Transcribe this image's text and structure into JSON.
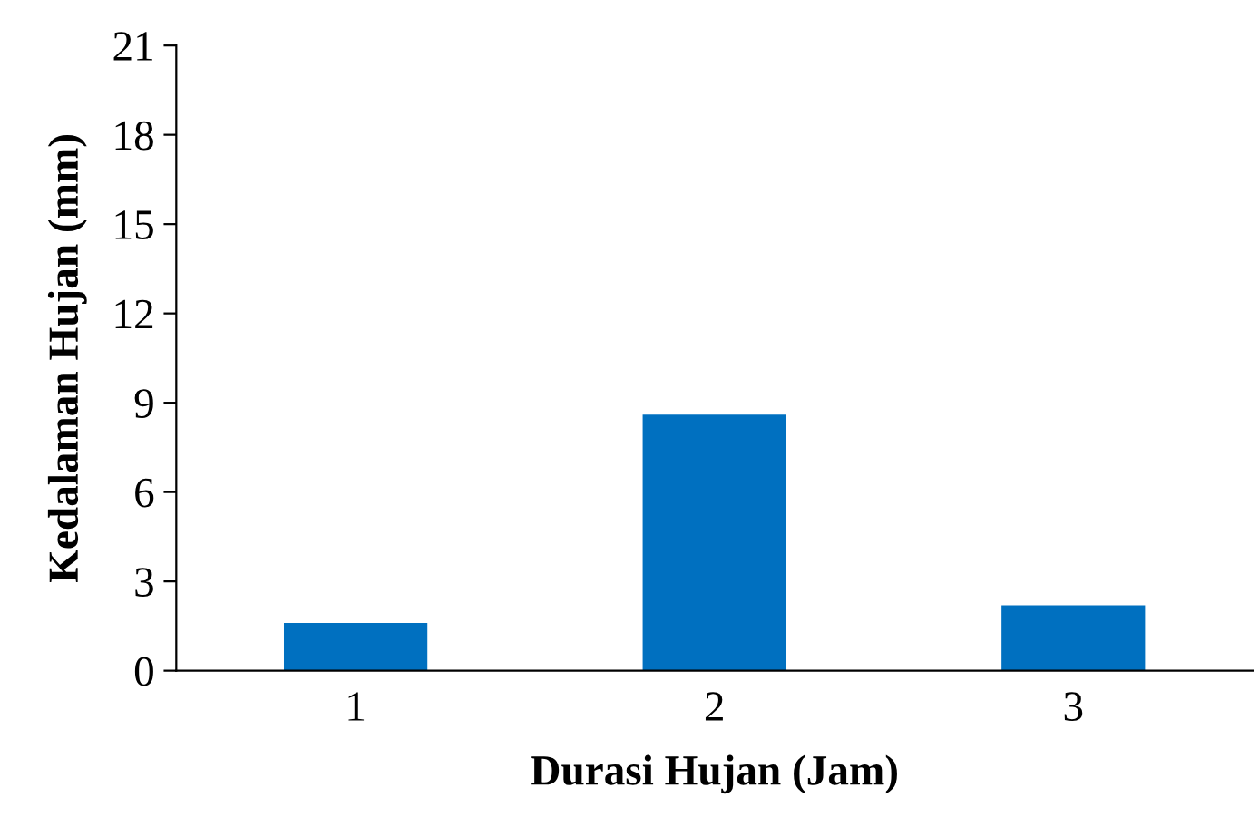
{
  "chart_data": {
    "type": "bar",
    "xlabel": "Durasi Hujan (Jam)",
    "ylabel": "Kedalaman Hujan (mm)",
    "categories": [
      "1",
      "2",
      "3"
    ],
    "values": [
      1.6,
      8.6,
      2.2
    ],
    "color": "#0070c0",
    "ylim": [
      0,
      21
    ],
    "yticks": [
      0,
      3,
      6,
      9,
      12,
      15,
      18,
      21
    ],
    "grid": false
  }
}
